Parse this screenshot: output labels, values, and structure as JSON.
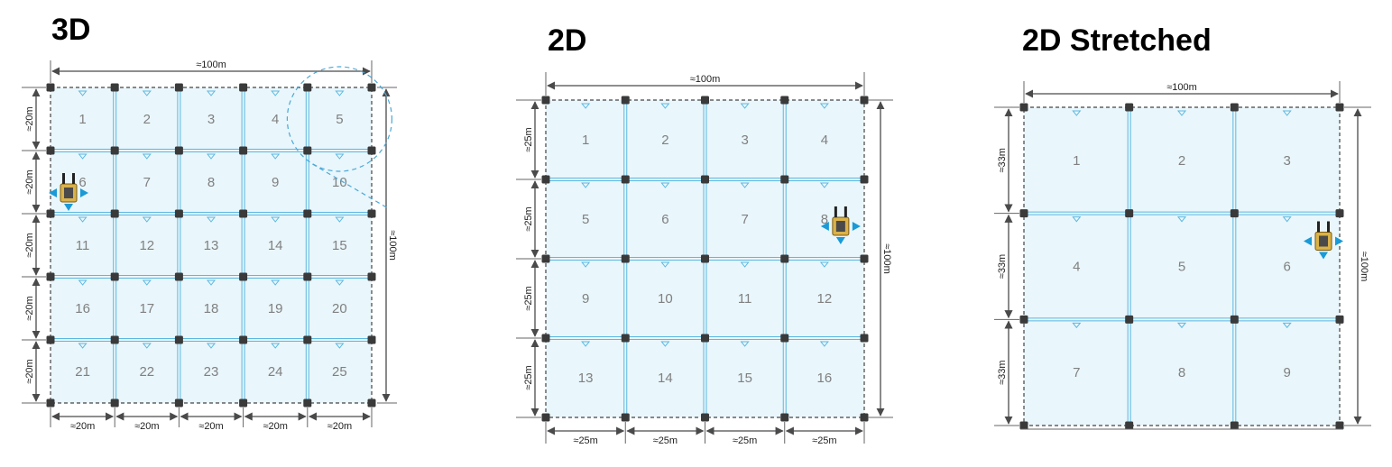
{
  "panels": [
    {
      "title": "3D",
      "grid": 5,
      "width_label": "≈100m",
      "height_label": "≈100m",
      "cell_label_x": "≈20m",
      "cell_label_y": "≈20m",
      "cells": [
        "1",
        "2",
        "3",
        "4",
        "5",
        "6",
        "7",
        "8",
        "9",
        "10",
        "11",
        "12",
        "13",
        "14",
        "15",
        "16",
        "17",
        "18",
        "19",
        "20",
        "21",
        "22",
        "23",
        "24",
        "25"
      ],
      "robot_cell": "6",
      "highlight_cell": "5"
    },
    {
      "title": "2D",
      "grid": 4,
      "width_label": "≈100m",
      "height_label": "≈100m",
      "cell_label_x": "≈25m",
      "cell_label_y": "≈25m",
      "cells": [
        "1",
        "2",
        "3",
        "4",
        "5",
        "6",
        "7",
        "8",
        "9",
        "10",
        "11",
        "12",
        "13",
        "14",
        "15",
        "16"
      ],
      "robot_cell": "8"
    },
    {
      "title": "2D Stretched",
      "grid": 3,
      "width_label": "≈100m",
      "height_label": "≈100m",
      "cell_label_y": "≈33m",
      "cells": [
        "1",
        "2",
        "3",
        "4",
        "5",
        "6",
        "7",
        "8",
        "9"
      ],
      "robot_cell": "6"
    }
  ],
  "colors": {
    "cell_fill": "#e9f6fb",
    "grid_line": "#5bb8e0",
    "post": "#3a3a3a",
    "dim_line": "#4a4a4a",
    "cell_text": "#808080",
    "robot_body": "#d9b24a",
    "robot_arrow": "#1a9ad6"
  }
}
